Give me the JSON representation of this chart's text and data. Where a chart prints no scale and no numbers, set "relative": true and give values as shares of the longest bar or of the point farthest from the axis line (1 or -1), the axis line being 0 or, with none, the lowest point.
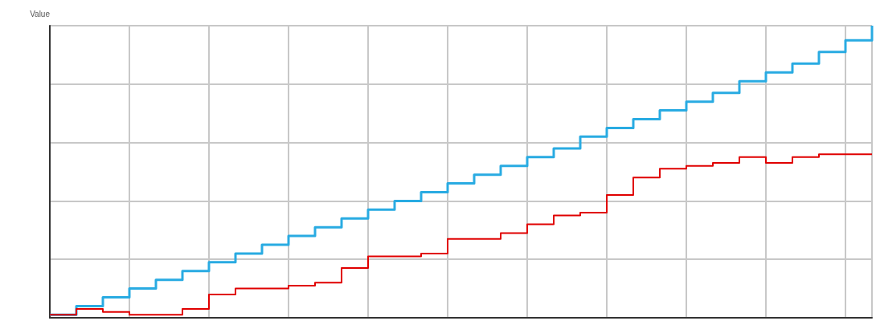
{
  "chart_data": {
    "type": "step",
    "ylabel": "Value",
    "relative": true,
    "grid": true,
    "marker": "none",
    "line_style": "solid",
    "categories": [
      null,
      null,
      null,
      null,
      null,
      null,
      null,
      null,
      null,
      null,
      null,
      null,
      null,
      null,
      null,
      null,
      null,
      null,
      null,
      null,
      null,
      null,
      null,
      null,
      null,
      null,
      null,
      null,
      null,
      null,
      null,
      null
    ],
    "series": [
      {
        "color": "#29abe2",
        "values": [
          0.01,
          0.04,
          0.07,
          0.1,
          0.13,
          0.16,
          0.19,
          0.22,
          0.25,
          0.28,
          0.31,
          0.34,
          0.37,
          0.4,
          0.43,
          0.46,
          0.49,
          0.52,
          0.55,
          0.58,
          0.62,
          0.65,
          0.68,
          0.71,
          0.74,
          0.77,
          0.81,
          0.84,
          0.87,
          0.91,
          0.95,
          1
        ]
      },
      {
        "color": "#e00000",
        "values": [
          0.01,
          0.03,
          0.02,
          0.01,
          0.01,
          0.03,
          0.08,
          0.1,
          0.1,
          0.11,
          0.12,
          0.17,
          0.21,
          0.21,
          0.22,
          0.27,
          0.27,
          0.29,
          0.32,
          0.35,
          0.36,
          0.42,
          0.48,
          0.51,
          0.52,
          0.53,
          0.55,
          0.53,
          0.55,
          0.56,
          0.56,
          0.56
        ]
      }
    ]
  }
}
